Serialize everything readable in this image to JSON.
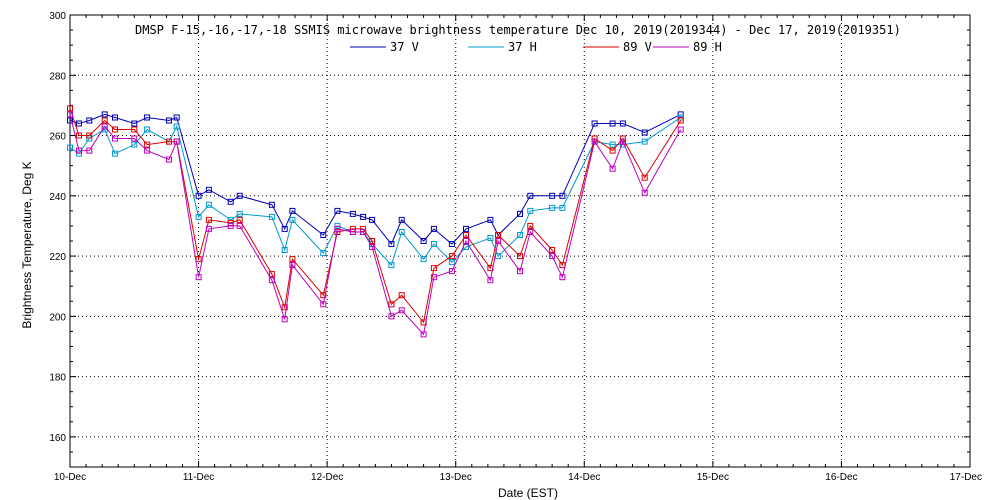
{
  "chart_data": {
    "type": "line",
    "title": "DMSP F-15,-16,-17,-18 SSMIS microwave brightness temperature Dec 10, 2019(2019344) - Dec 17, 2019(2019351)",
    "xlabel": "Date (EST)",
    "ylabel": "Brightness Temperature, Deg K",
    "x_tick_labels": [
      "10-Dec",
      "11-Dec",
      "12-Dec",
      "13-Dec",
      "14-Dec",
      "15-Dec",
      "16-Dec",
      "17-Dec"
    ],
    "y_ticks": [
      160,
      180,
      200,
      220,
      240,
      260,
      280,
      300
    ],
    "xlim": [
      0,
      7
    ],
    "ylim": [
      150,
      300
    ],
    "grid": true,
    "legend_position": "top-center",
    "x_units": "days since 10-Dec 00:00 EST",
    "series": [
      {
        "name": "37 V",
        "color": "#0000b4",
        "x": [
          0.0,
          0.07,
          0.15,
          0.27,
          0.35,
          0.5,
          0.6,
          0.77,
          0.83,
          1.0,
          1.08,
          1.25,
          1.32,
          1.57,
          1.67,
          1.73,
          1.97,
          2.08,
          2.2,
          2.28,
          2.35,
          2.5,
          2.58,
          2.75,
          2.83,
          2.97,
          3.08,
          3.27,
          3.33,
          3.5,
          3.58,
          3.75,
          3.83,
          4.08,
          4.22,
          4.3,
          4.47,
          4.75
        ],
        "y": [
          265,
          264,
          265,
          267,
          266,
          264,
          266,
          265,
          266,
          240,
          242,
          238,
          240,
          237,
          229,
          235,
          227,
          235,
          234,
          233,
          232,
          224,
          232,
          225,
          229,
          224,
          229,
          232,
          227,
          234,
          240,
          240,
          240,
          264,
          264,
          264,
          261,
          267
        ]
      },
      {
        "name": "37 H",
        "color": "#009bd2",
        "x": [
          0.0,
          0.07,
          0.15,
          0.27,
          0.35,
          0.5,
          0.6,
          0.77,
          0.83,
          1.0,
          1.08,
          1.25,
          1.32,
          1.57,
          1.67,
          1.73,
          1.97,
          2.08,
          2.2,
          2.28,
          2.35,
          2.5,
          2.58,
          2.75,
          2.83,
          2.97,
          3.08,
          3.27,
          3.33,
          3.5,
          3.58,
          3.75,
          3.83,
          4.08,
          4.22,
          4.3,
          4.47,
          4.75
        ],
        "y": [
          256,
          254,
          259,
          262,
          254,
          257,
          262,
          258,
          263,
          233,
          237,
          232,
          234,
          233,
          222,
          232,
          221,
          230,
          228,
          228,
          224,
          217,
          228,
          219,
          224,
          218,
          223,
          226,
          220,
          227,
          235,
          236,
          236,
          258,
          257,
          257,
          258,
          266
        ]
      },
      {
        "name": "89 V",
        "color": "#dc0000",
        "x": [
          0.0,
          0.07,
          0.15,
          0.27,
          0.35,
          0.5,
          0.6,
          0.77,
          0.83,
          1.0,
          1.08,
          1.25,
          1.32,
          1.57,
          1.67,
          1.73,
          1.97,
          2.08,
          2.2,
          2.28,
          2.35,
          2.5,
          2.58,
          2.75,
          2.83,
          2.97,
          3.08,
          3.27,
          3.33,
          3.5,
          3.58,
          3.75,
          3.83,
          4.08,
          4.22,
          4.3,
          4.47,
          4.75
        ],
        "y": [
          269,
          260,
          260,
          265,
          262,
          262,
          257,
          258,
          258,
          219,
          232,
          231,
          232,
          214,
          203,
          219,
          207,
          228,
          229,
          229,
          225,
          204,
          207,
          198,
          216,
          220,
          227,
          216,
          227,
          220,
          230,
          222,
          217,
          259,
          255,
          259,
          246,
          265
        ]
      },
      {
        "name": "89 H",
        "color": "#be00be",
        "x": [
          0.0,
          0.07,
          0.15,
          0.27,
          0.35,
          0.5,
          0.6,
          0.77,
          0.83,
          1.0,
          1.08,
          1.25,
          1.32,
          1.57,
          1.67,
          1.73,
          1.97,
          2.08,
          2.2,
          2.28,
          2.35,
          2.5,
          2.58,
          2.75,
          2.83,
          2.97,
          3.08,
          3.27,
          3.33,
          3.5,
          3.58,
          3.75,
          3.83,
          4.08,
          4.22,
          4.3,
          4.47,
          4.75
        ],
        "y": [
          267,
          255,
          255,
          263,
          259,
          259,
          255,
          252,
          258,
          213,
          229,
          230,
          230,
          212,
          199,
          217,
          204,
          229,
          228,
          228,
          223,
          200,
          202,
          194,
          213,
          215,
          225,
          212,
          225,
          215,
          228,
          220,
          213,
          258,
          249,
          258,
          241,
          262
        ]
      }
    ]
  }
}
